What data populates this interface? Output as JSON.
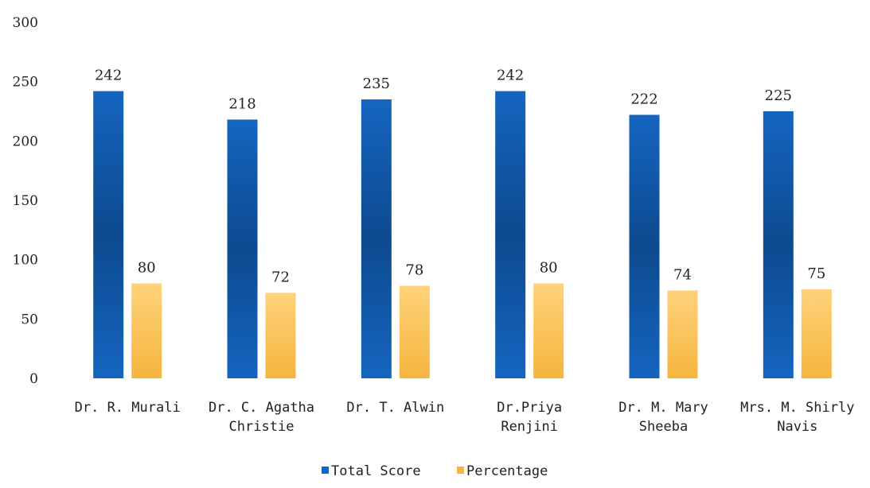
{
  "chart_data": {
    "type": "bar",
    "categories": [
      [
        "Dr. R. Murali"
      ],
      [
        "Dr. C. Agatha",
        "Christie"
      ],
      [
        "Dr. T. Alwin"
      ],
      [
        "Dr.Priya",
        "Renjini"
      ],
      [
        "Dr. M. Mary",
        "Sheeba"
      ],
      [
        "Mrs. M. Shirly",
        "Navis"
      ]
    ],
    "series": [
      {
        "name": "Total Score",
        "color": "#1565c0",
        "color_dark": "#0d4a8f",
        "values": [
          242,
          218,
          235,
          242,
          222,
          225
        ],
        "labels": [
          "242",
          "218",
          "235",
          "242",
          "222",
          "225"
        ]
      },
      {
        "name": "Percentage",
        "color": "#f5b53f",
        "color_light": "#ffd27a",
        "values": [
          80,
          72,
          78,
          80,
          74,
          75
        ],
        "labels": [
          "80",
          "72",
          "78",
          "80",
          "74",
          "75"
        ]
      }
    ],
    "yticks": [
      "0",
      "50",
      "100",
      "150",
      "200",
      "250",
      "300"
    ],
    "ylim": [
      0,
      300
    ],
    "grid": false,
    "legend_position": "bottom"
  }
}
